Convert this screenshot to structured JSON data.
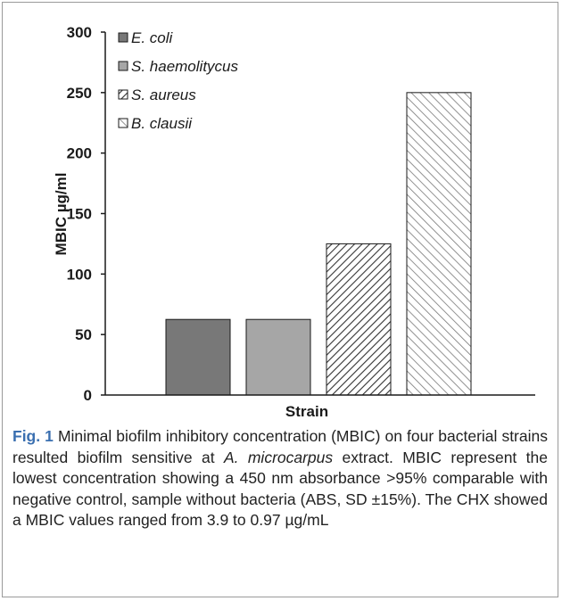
{
  "chart_data": {
    "type": "bar",
    "title": "",
    "xlabel": "Strain",
    "ylabel": "MBIC µg/ml",
    "ylim": [
      0,
      300
    ],
    "yticks": [
      "0",
      "50",
      "100",
      "150",
      "200",
      "250",
      "300"
    ],
    "legend_position": "top-left",
    "series": [
      {
        "name": "E. coli",
        "value": 62.5,
        "fill": "#787878",
        "pattern": "solid"
      },
      {
        "name": "S. haemolitycus",
        "value": 62.5,
        "fill": "#a6a6a6",
        "pattern": "solid"
      },
      {
        "name": "S. aureus",
        "value": 125,
        "fill": "#ffffff",
        "pattern": "dense-diagonal-down"
      },
      {
        "name": "B. clausii",
        "value": 250,
        "fill": "#ffffff",
        "pattern": "wide-diagonal-up"
      }
    ]
  },
  "caption": {
    "label": "Fig. 1",
    "part1": " Minimal biofilm inhibitory concentration (MBIC) on four bacterial strains resulted biofilm sensitive at ",
    "italic": "A. microcarpus",
    "part2": " extract. MBIC represent the lowest concentration showing a 450 nm absorbance >95% comparable with negative control, sample without bacteria (ABS, SD ±15%). The CHX showed a MBIC values ranged from 3.9 to 0.97 µg/mL"
  }
}
